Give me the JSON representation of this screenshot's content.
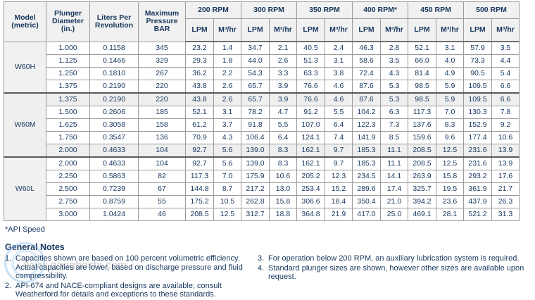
{
  "page": {
    "footnote": "*API Speed",
    "notes_title": "General Notes",
    "watermark_url": "www.gongboshi.com"
  },
  "colors": {
    "text": "#17375E",
    "header_bg": "#F1F1F1",
    "border": "#9B9B9B",
    "group_border": "#5A5A5A",
    "shaded_row": "#EFEFEF"
  },
  "table": {
    "row_headers": [
      "Model\n(metric)",
      "Plunger\nDiameter\n(in.)",
      "Liters Per\nRevolution",
      "Maximum\nPressure\nBAR"
    ],
    "rpm_groups": [
      "200 RPM",
      "300 RPM",
      "350 RPM",
      "400 RPM*",
      "450 RPM",
      "500 RPM"
    ],
    "sub_headers": [
      "LPM",
      "M³/hr"
    ],
    "groups": [
      {
        "model": "W60H",
        "rows": [
          {
            "diameter": "1.000",
            "liters": "0.1158",
            "bar": "345",
            "shaded": false,
            "values": [
              "23.2",
              "1.4",
              "34.7",
              "2.1",
              "40.5",
              "2.4",
              "46.3",
              "2.8",
              "52.1",
              "3.1",
              "57.9",
              "3.5"
            ]
          },
          {
            "diameter": "1.125",
            "liters": "0.1466",
            "bar": "329",
            "shaded": false,
            "values": [
              "29.3",
              "1.8",
              "44.0",
              "2.6",
              "51.3",
              "3.1",
              "58.6",
              "3.5",
              "66.0",
              "4.0",
              "73.3",
              "4.4"
            ]
          },
          {
            "diameter": "1.250",
            "liters": "0.1810",
            "bar": "267",
            "shaded": false,
            "values": [
              "36.2",
              "2.2",
              "54.3",
              "3.3",
              "63.3",
              "3.8",
              "72.4",
              "4.3",
              "81.4",
              "4.9",
              "90.5",
              "5.4"
            ]
          },
          {
            "diameter": "1.375",
            "liters": "0.2190",
            "bar": "220",
            "shaded": false,
            "values": [
              "43.8",
              "2.6",
              "65.7",
              "3.9",
              "76.6",
              "4.6",
              "87.6",
              "5.3",
              "98.5",
              "5.9",
              "109.5",
              "6.6"
            ]
          }
        ]
      },
      {
        "model": "W60M",
        "rows": [
          {
            "diameter": "1.375",
            "liters": "0.2190",
            "bar": "220",
            "shaded": true,
            "values": [
              "43.8",
              "2.6",
              "65.7",
              "3.9",
              "76.6",
              "4.6",
              "87.6",
              "5.3",
              "98.5",
              "5.9",
              "109.5",
              "6.6"
            ]
          },
          {
            "diameter": "1.500",
            "liters": "0.2606",
            "bar": "185",
            "shaded": false,
            "values": [
              "52.1",
              "3.1",
              "78.2",
              "4.7",
              "91.2",
              "5.5",
              "104.2",
              "6.3",
              "117.3",
              "7.0",
              "130.3",
              "7.8"
            ]
          },
          {
            "diameter": "1.625",
            "liters": "0.3058",
            "bar": "158",
            "shaded": false,
            "values": [
              "61.2",
              "3.7",
              "91.8",
              "5.5",
              "107.0",
              "6.4",
              "122.3",
              "7.3",
              "137.6",
              "8.3",
              "152.9",
              "9.2"
            ]
          },
          {
            "diameter": "1.750",
            "liters": "0.3547",
            "bar": "136",
            "shaded": false,
            "values": [
              "70.9",
              "4.3",
              "106.4",
              "6.4",
              "124.1",
              "7.4",
              "141.9",
              "8.5",
              "159.6",
              "9.6",
              "177.4",
              "10.6"
            ]
          },
          {
            "diameter": "2.000",
            "liters": "0.4633",
            "bar": "104",
            "shaded": true,
            "values": [
              "92.7",
              "5.6",
              "139.0",
              "8.3",
              "162.1",
              "9.7",
              "185.3",
              "11.1",
              "208.5",
              "12.5",
              "231.6",
              "13.9"
            ]
          }
        ]
      },
      {
        "model": "W60L",
        "rows": [
          {
            "diameter": "2.000",
            "liters": "0.4633",
            "bar": "104",
            "shaded": false,
            "values": [
              "92.7",
              "5.6",
              "139.0",
              "8.3",
              "162.1",
              "9.7",
              "185.3",
              "11.1",
              "208.5",
              "12.5",
              "231.6",
              "13.9"
            ]
          },
          {
            "diameter": "2.250",
            "liters": "0.5863",
            "bar": "82",
            "shaded": false,
            "values": [
              "117.3",
              "7.0",
              "175.9",
              "10.6",
              "205.2",
              "12.3",
              "234.5",
              "14.1",
              "263.9",
              "15.8",
              "293.2",
              "17.6"
            ]
          },
          {
            "diameter": "2.500",
            "liters": "0.7239",
            "bar": "67",
            "shaded": false,
            "values": [
              "144.8",
              "8.7",
              "217.2",
              "13.0",
              "253.4",
              "15.2",
              "289.6",
              "17.4",
              "325.7",
              "19.5",
              "361.9",
              "21.7"
            ]
          },
          {
            "diameter": "2.750",
            "liters": "0.8759",
            "bar": "55",
            "shaded": false,
            "values": [
              "175.2",
              "10.5",
              "262.8",
              "15.8",
              "306.6",
              "18.4",
              "350.4",
              "21.0",
              "394.2",
              "23.6",
              "437.9",
              "26.3"
            ]
          },
          {
            "diameter": "3.000",
            "liters": "1.0424",
            "bar": "46",
            "shaded": false,
            "values": [
              "208.5",
              "12.5",
              "312.7",
              "18.8",
              "364.8",
              "21.9",
              "417.0",
              "25.0",
              "469.1",
              "28.1",
              "521.2",
              "31.3"
            ]
          }
        ]
      }
    ]
  },
  "notes_left": [
    {
      "num": "1.",
      "text": "Capacities shown are based on 100 percent volumetric efficiency. Actual capacities are lower, based on discharge pressure and fluid compressibility."
    },
    {
      "num": "2.",
      "text": "API-674 and NACE-compliant designs are available; consult Weatherford for details and exceptions to these standards."
    }
  ],
  "notes_right": [
    {
      "num": "3.",
      "text": "For operation below 200 RPM, an auxiliary lubrication system is required."
    },
    {
      "num": "4.",
      "text": "Standard plunger sizes are shown, however other sizes are available upon request."
    }
  ]
}
